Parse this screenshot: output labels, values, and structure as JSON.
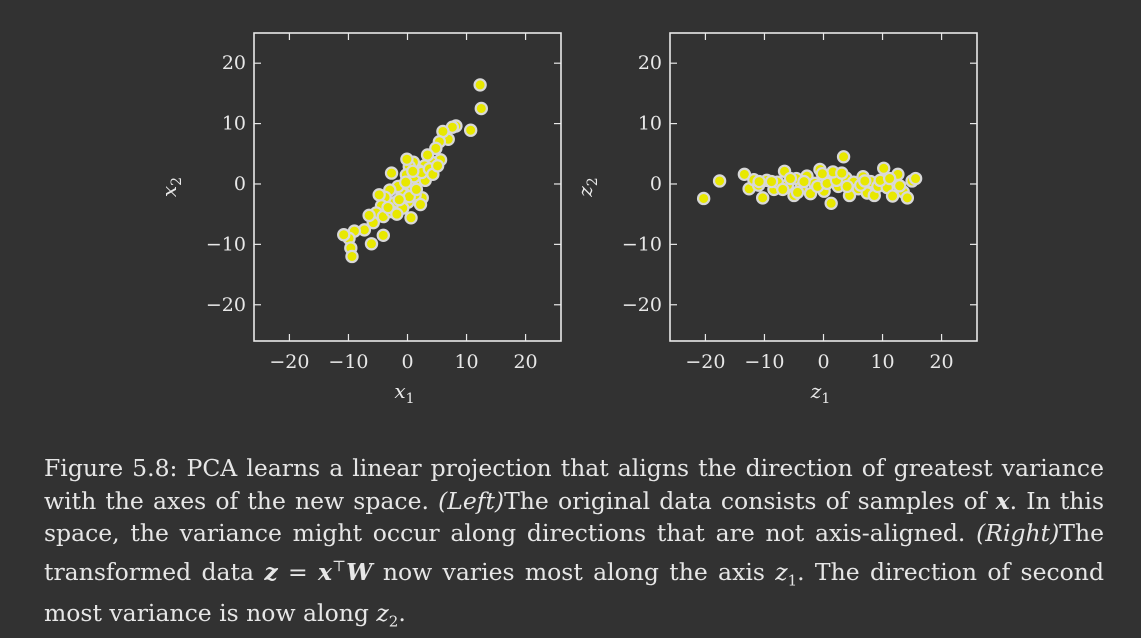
{
  "chart_data": [
    {
      "type": "scatter",
      "xlabel": "x",
      "xlabel_sub": "1",
      "ylabel": "x",
      "ylabel_sub": "2",
      "xlim": [
        -26,
        26
      ],
      "ylim": [
        -26,
        25
      ],
      "xticks": [
        -20,
        -10,
        0,
        10,
        20
      ],
      "yticks": [
        -20,
        -10,
        0,
        10,
        20
      ],
      "xtick_labels": [
        "−20",
        "−10",
        "0",
        "10",
        "20"
      ],
      "ytick_labels": [
        "−20",
        "−10",
        "0",
        "10",
        "20"
      ],
      "point_color": "#e8e800",
      "point_edge": "#d8d8d8",
      "points": [
        [
          12.3,
          16.4
        ],
        [
          12.5,
          12.5
        ],
        [
          10.7,
          8.9
        ],
        [
          8.2,
          9.6
        ],
        [
          7.6,
          9.4
        ],
        [
          6.9,
          7.4
        ],
        [
          6.0,
          8.7
        ],
        [
          5.4,
          7.0
        ],
        [
          4.8,
          5.9
        ],
        [
          5.6,
          4.0
        ],
        [
          4.1,
          3.6
        ],
        [
          3.4,
          4.8
        ],
        [
          2.9,
          3.0
        ],
        [
          1.9,
          2.2
        ],
        [
          1.0,
          3.6
        ],
        [
          0.3,
          2.9
        ],
        [
          -0.2,
          1.5
        ],
        [
          0.8,
          -0.4
        ],
        [
          1.7,
          0.8
        ],
        [
          3.0,
          0.6
        ],
        [
          2.5,
          -2.3
        ],
        [
          1.3,
          -1.8
        ],
        [
          0.1,
          -3.0
        ],
        [
          -0.9,
          -1.6
        ],
        [
          -1.6,
          -0.4
        ],
        [
          -2.7,
          1.8
        ],
        [
          -3.0,
          -1.0
        ],
        [
          -2.2,
          -3.1
        ],
        [
          -3.8,
          -2.2
        ],
        [
          -4.4,
          -3.6
        ],
        [
          -5.3,
          -4.8
        ],
        [
          -4.1,
          -5.4
        ],
        [
          -5.8,
          -6.4
        ],
        [
          -6.5,
          -5.2
        ],
        [
          -7.3,
          -7.6
        ],
        [
          -6.1,
          -9.9
        ],
        [
          -9.0,
          -7.8
        ],
        [
          -9.9,
          -9.0
        ],
        [
          -10.8,
          -8.4
        ],
        [
          -9.6,
          -10.6
        ],
        [
          -9.4,
          -12.0
        ],
        [
          -4.1,
          -8.5
        ],
        [
          -2.6,
          -4.6
        ],
        [
          -0.8,
          -4.0
        ],
        [
          0.3,
          -2.1
        ],
        [
          1.1,
          1.2
        ],
        [
          -0.3,
          0.3
        ],
        [
          2.4,
          1.9
        ],
        [
          3.7,
          2.5
        ],
        [
          4.3,
          1.6
        ],
        [
          0.6,
          -5.6
        ],
        [
          -1.4,
          -2.6
        ],
        [
          -3.3,
          -3.9
        ],
        [
          2.2,
          -3.4
        ],
        [
          -1.8,
          -5.0
        ],
        [
          5.1,
          3.0
        ],
        [
          -0.1,
          4.1
        ],
        [
          0.9,
          2.1
        ],
        [
          1.5,
          -0.9
        ],
        [
          -4.8,
          -1.8
        ]
      ]
    },
    {
      "type": "scatter",
      "xlabel": "z",
      "xlabel_sub": "1",
      "ylabel": "z",
      "ylabel_sub": "2",
      "xlim": [
        -26,
        26
      ],
      "ylim": [
        -26,
        25
      ],
      "xticks": [
        -20,
        -10,
        0,
        10,
        20
      ],
      "yticks": [
        -20,
        -10,
        0,
        10,
        20
      ],
      "xtick_labels": [
        "−20",
        "−10",
        "0",
        "10",
        "20"
      ],
      "ytick_labels": [
        "−20",
        "−10",
        "0",
        "10",
        "20"
      ],
      "point_color": "#e8e800",
      "point_edge": "#d8d8d8",
      "points": [
        [
          -20.3,
          -2.4
        ],
        [
          -17.6,
          0.5
        ],
        [
          -13.4,
          1.6
        ],
        [
          -12.6,
          -0.8
        ],
        [
          -11.8,
          0.7
        ],
        [
          -11.0,
          -0.2
        ],
        [
          -10.3,
          -2.3
        ],
        [
          -9.6,
          0.6
        ],
        [
          -8.4,
          -0.9
        ],
        [
          -7.8,
          0.3
        ],
        [
          -6.6,
          2.1
        ],
        [
          -6.1,
          -0.2
        ],
        [
          -5.0,
          -1.9
        ],
        [
          -4.6,
          0.9
        ],
        [
          -3.8,
          -0.6
        ],
        [
          -2.8,
          1.3
        ],
        [
          -2.2,
          -1.6
        ],
        [
          -1.5,
          0.1
        ],
        [
          -0.6,
          2.4
        ],
        [
          0.1,
          -1.2
        ],
        [
          0.7,
          0.8
        ],
        [
          1.3,
          -3.2
        ],
        [
          1.9,
          1.7
        ],
        [
          2.5,
          -0.4
        ],
        [
          3.4,
          4.5
        ],
        [
          3.8,
          1.0
        ],
        [
          4.4,
          -1.9
        ],
        [
          5.1,
          0.3
        ],
        [
          5.9,
          -0.8
        ],
        [
          6.7,
          1.2
        ],
        [
          7.4,
          -1.5
        ],
        [
          8.0,
          0.4
        ],
        [
          8.6,
          -1.9
        ],
        [
          9.2,
          -0.4
        ],
        [
          10.2,
          2.6
        ],
        [
          10.8,
          -0.6
        ],
        [
          11.7,
          -2.0
        ],
        [
          12.6,
          1.6
        ],
        [
          13.5,
          -1.3
        ],
        [
          14.2,
          -2.3
        ],
        [
          15.0,
          0.5
        ],
        [
          15.6,
          0.9
        ],
        [
          -3.3,
          0.4
        ],
        [
          -1.0,
          -0.4
        ],
        [
          0.6,
          0.1
        ],
        [
          2.2,
          0.6
        ],
        [
          4.0,
          -0.4
        ],
        [
          -6.9,
          -0.9
        ],
        [
          -8.8,
          0.4
        ],
        [
          1.6,
          2.0
        ],
        [
          6.3,
          -0.2
        ],
        [
          9.6,
          0.6
        ],
        [
          -4.4,
          -1.4
        ],
        [
          -0.2,
          1.7
        ],
        [
          3.1,
          1.8
        ],
        [
          7.0,
          0.5
        ],
        [
          11.2,
          0.9
        ],
        [
          12.9,
          -0.3
        ],
        [
          -10.9,
          0.4
        ],
        [
          -5.6,
          0.9
        ]
      ]
    }
  ],
  "caption": {
    "p1": "Figure 5.8: PCA learns a linear projection that aligns the direction of greatest variance with the axes of the new space. ",
    "left": "(Left)",
    "p2": "The original data consists of samples of ",
    "x_sym": "x",
    "p3": ". In this space, the variance might occur along directions that are not axis-aligned. ",
    "right": "(Right)",
    "p4": "The transformed data ",
    "z_sym": "z",
    "eq": " = ",
    "x_sym2": "x",
    "top": "⊤",
    "W_sym": "W",
    "p5": " now varies most along the axis ",
    "z1": "z",
    "z1_sub": "1",
    "p6": ". The direction of second most variance is now along ",
    "z2": "z",
    "z2_sub": "2",
    "p7": "."
  }
}
